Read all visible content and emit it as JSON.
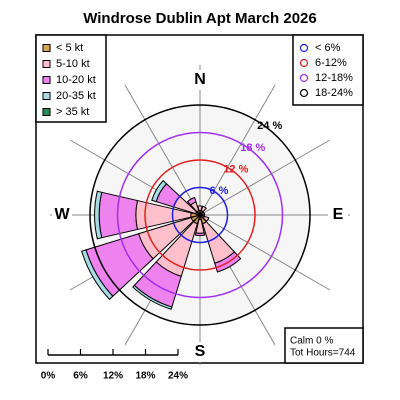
{
  "chart_data": {
    "type": "windrose",
    "title": "Windrose  Dublin Apt March 2026",
    "x": [
      0,
      30,
      60,
      90,
      120,
      150,
      180,
      210,
      240,
      270,
      300,
      330
    ],
    "compass_labels": [
      "N",
      "E",
      "S",
      "W"
    ],
    "series": [
      {
        "name": "< 5  kt",
        "color": "#d9a45a",
        "values": [
          1,
          1,
          0.5,
          0.5,
          1,
          2,
          1,
          2,
          2,
          2,
          1,
          1
        ]
      },
      {
        "name": "5-10 kt",
        "color": "#ffc0cb",
        "values": [
          1,
          1,
          0.5,
          0.5,
          1,
          9,
          3,
          12,
          12,
          12,
          5,
          2
        ]
      },
      {
        "name": "10-20 kt",
        "color": "#ee82ee",
        "values": [
          0,
          0,
          0,
          0,
          0,
          2,
          0.5,
          7,
          12,
          8,
          4,
          1
        ]
      },
      {
        "name": "20-35 kt",
        "color": "#a8dce4",
        "values": [
          0,
          0,
          0,
          0,
          0,
          0,
          0,
          0.5,
          1,
          1,
          1,
          0
        ]
      },
      {
        "name": "> 35 kt",
        "color": "#2e8b57",
        "values": [
          0,
          0,
          0,
          0,
          0,
          0,
          0,
          0,
          0,
          0,
          0,
          0
        ]
      }
    ],
    "rlim": [
      0,
      24
    ],
    "rings": [
      {
        "value": 6,
        "label": "6 %",
        "legend": "< 6%",
        "color": "#2020e0"
      },
      {
        "value": 12,
        "label": "12 %",
        "legend": "6-12%",
        "color": "#e02020"
      },
      {
        "value": 18,
        "label": "18 %",
        "legend": "12-18%",
        "color": "#a030f0"
      },
      {
        "value": 24,
        "label": "24 %",
        "legend": "18-24%",
        "color": "#000000"
      }
    ],
    "scale_ticks": [
      {
        "value": 0,
        "label": "0%"
      },
      {
        "value": 6,
        "label": "6%"
      },
      {
        "value": 12,
        "label": "12%"
      },
      {
        "value": 18,
        "label": "18%"
      },
      {
        "value": 24,
        "label": "24%"
      }
    ],
    "calm": "Calm 0 %",
    "total": "Tot Hours=744"
  }
}
